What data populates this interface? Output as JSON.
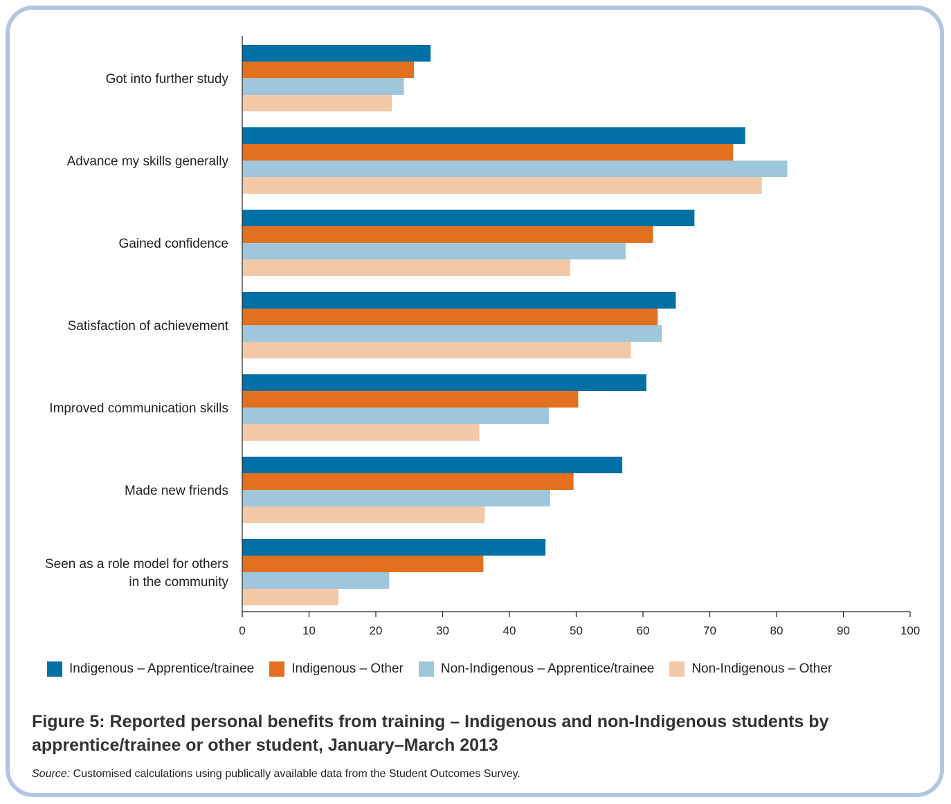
{
  "chart_data": {
    "type": "bar",
    "orientation": "horizontal",
    "categories": [
      [
        "Got into further study"
      ],
      [
        "Advance my skills generally"
      ],
      [
        "Gained confidence"
      ],
      [
        "Satisfaction of achievement"
      ],
      [
        "Improved communication skills"
      ],
      [
        "Made new friends"
      ],
      [
        "Seen as a role model for others",
        "in the community"
      ]
    ],
    "series": [
      {
        "name": "Indigenous – Apprentice/trainee",
        "color": "#0170a7",
        "values": [
          28.2,
          75.3,
          67.7,
          64.9,
          60.5,
          56.9,
          45.4
        ]
      },
      {
        "name": "Indigenous – Other",
        "color": "#e2701f",
        "values": [
          25.7,
          73.5,
          61.5,
          62.2,
          50.3,
          49.6,
          36.1
        ]
      },
      {
        "name": "Non-Indigenous – Apprentice/trainee",
        "color": "#9fc7dc",
        "values": [
          24.2,
          81.6,
          57.4,
          62.8,
          45.9,
          46.1,
          22.0
        ]
      },
      {
        "name": "Non-Indigenous – Other",
        "color": "#f3c8a7",
        "values": [
          22.4,
          77.8,
          49.1,
          58.2,
          35.5,
          36.3,
          14.4
        ]
      }
    ],
    "xlim": [
      0,
      100
    ],
    "xticks": [
      "0",
      "10",
      "20",
      "30",
      "40",
      "50",
      "60",
      "70",
      "80",
      "90",
      "100"
    ],
    "legend_position": "bottom",
    "grid": false
  },
  "figure": {
    "title": "Figure 5: Reported personal benefits from training – Indigenous and non-Indigenous students by apprentice/trainee or other student, January–March 2013",
    "source_label": "Source:",
    "source_text": " Customised calculations using publically available data from the Student Outcomes Survey."
  }
}
